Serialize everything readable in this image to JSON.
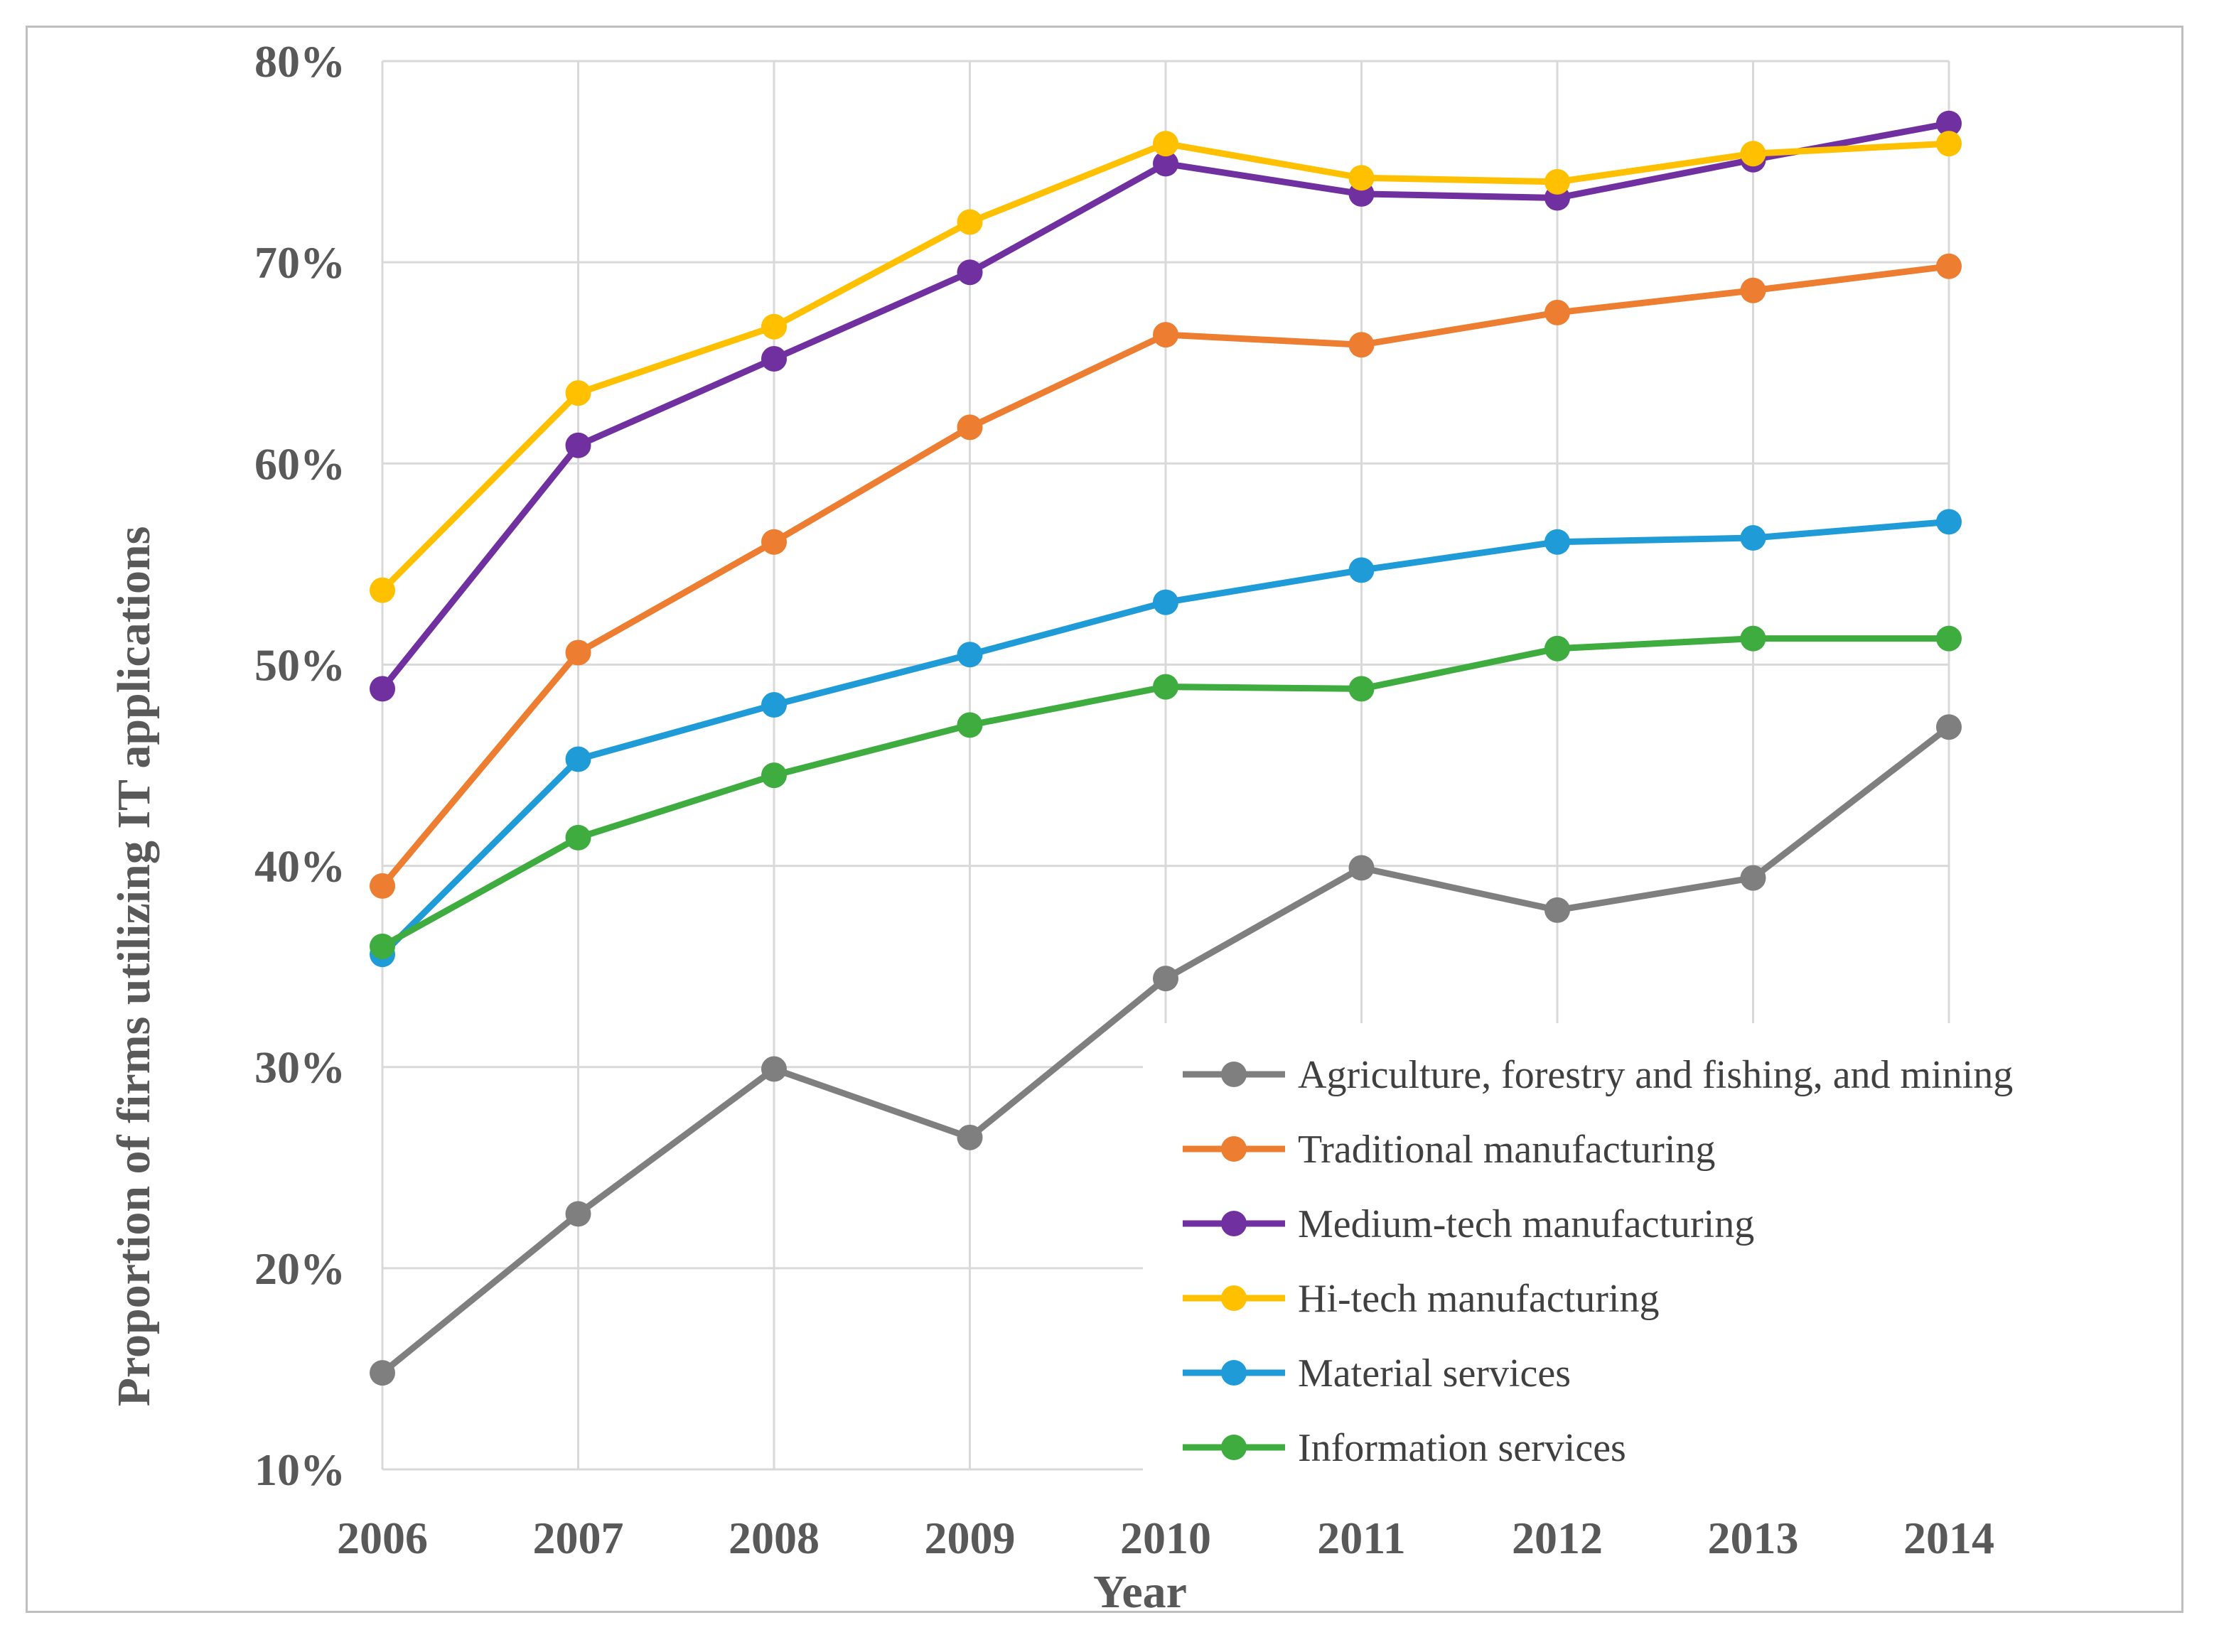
{
  "chart_data": {
    "type": "line",
    "title": "",
    "xlabel": "Year",
    "ylabel": "Proportion of firms utilizing IT applications",
    "x": [
      "2006",
      "2007",
      "2008",
      "2009",
      "2010",
      "2011",
      "2012",
      "2013",
      "2014"
    ],
    "ylim": [
      10,
      80
    ],
    "yticks": [
      10,
      20,
      30,
      40,
      50,
      60,
      70,
      80
    ],
    "ytick_labels": [
      "10%",
      "20%",
      "30%",
      "40%",
      "50%",
      "60%",
      "70%",
      "80%"
    ],
    "grid": true,
    "legend_position": "bottom-right",
    "series": [
      {
        "name": "Agriculture, forestry and fishing, and mining",
        "color": "#7f7f7f",
        "values": [
          14.8,
          22.7,
          29.9,
          26.5,
          34.4,
          39.9,
          37.8,
          39.4,
          46.9
        ]
      },
      {
        "name": "Traditional manufacturing",
        "color": "#ed7d31",
        "values": [
          39.0,
          50.6,
          56.1,
          61.8,
          66.4,
          65.9,
          67.5,
          68.6,
          69.8
        ]
      },
      {
        "name": "Medium-tech manufacturing",
        "color": "#7030a0",
        "values": [
          48.8,
          60.9,
          65.2,
          69.5,
          74.9,
          73.4,
          73.2,
          75.1,
          76.9
        ]
      },
      {
        "name": "Hi-tech manufacturing",
        "color": "#ffc000",
        "values": [
          53.7,
          63.5,
          66.8,
          72.0,
          75.9,
          74.2,
          74.0,
          75.4,
          75.9
        ]
      },
      {
        "name": "Material services",
        "color": "#1f9bd7",
        "values": [
          35.6,
          45.3,
          48.0,
          50.5,
          53.1,
          54.7,
          56.1,
          56.3,
          57.1
        ]
      },
      {
        "name": "Information services",
        "color": "#3fac3f",
        "values": [
          36.0,
          41.4,
          44.5,
          47.0,
          48.9,
          48.8,
          50.8,
          51.3,
          51.3
        ]
      }
    ]
  }
}
